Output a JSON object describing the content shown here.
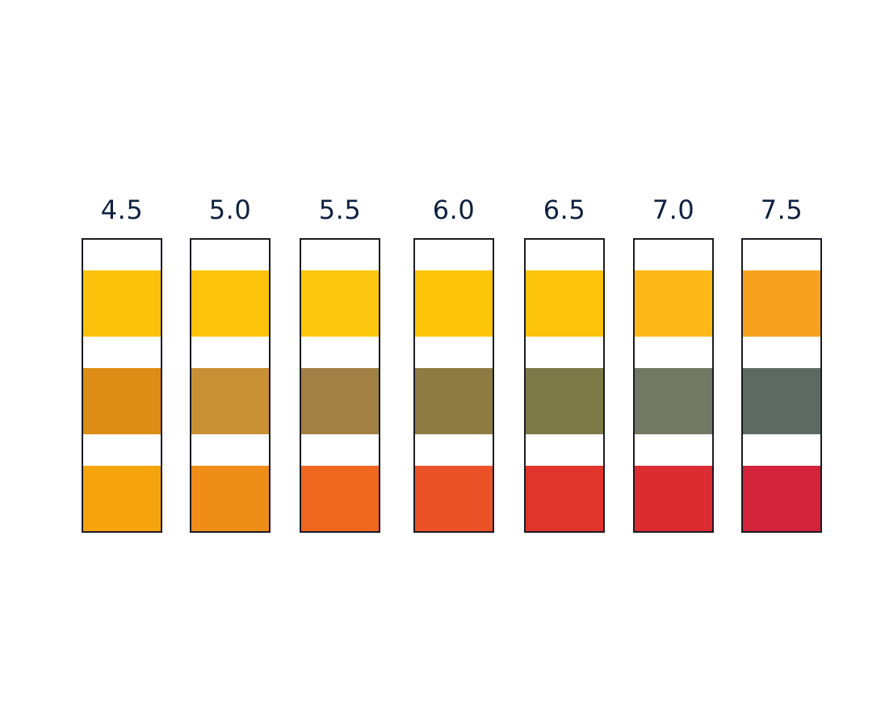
{
  "strips": [
    {
      "label": "4.5",
      "pads": [
        "#fcc10a",
        "#dd8d15",
        "#f5a40e"
      ]
    },
    {
      "label": "5.0",
      "pads": [
        "#fcc40c",
        "#c98f35",
        "#ee8d18"
      ]
    },
    {
      "label": "5.5",
      "pads": [
        "#fcc70e",
        "#a08045",
        "#f06720"
      ]
    },
    {
      "label": "6.0",
      "pads": [
        "#fdc507",
        "#8e7b41",
        "#ec5227"
      ]
    },
    {
      "label": "6.5",
      "pads": [
        "#fbc30a",
        "#7d7848",
        "#e0352c"
      ]
    },
    {
      "label": "7.0",
      "pads": [
        "#fdb917",
        "#717864",
        "#db2c31"
      ]
    },
    {
      "label": "7.5",
      "pads": [
        "#f7a21e",
        "#5d6a62",
        "#d2233a"
      ]
    }
  ]
}
